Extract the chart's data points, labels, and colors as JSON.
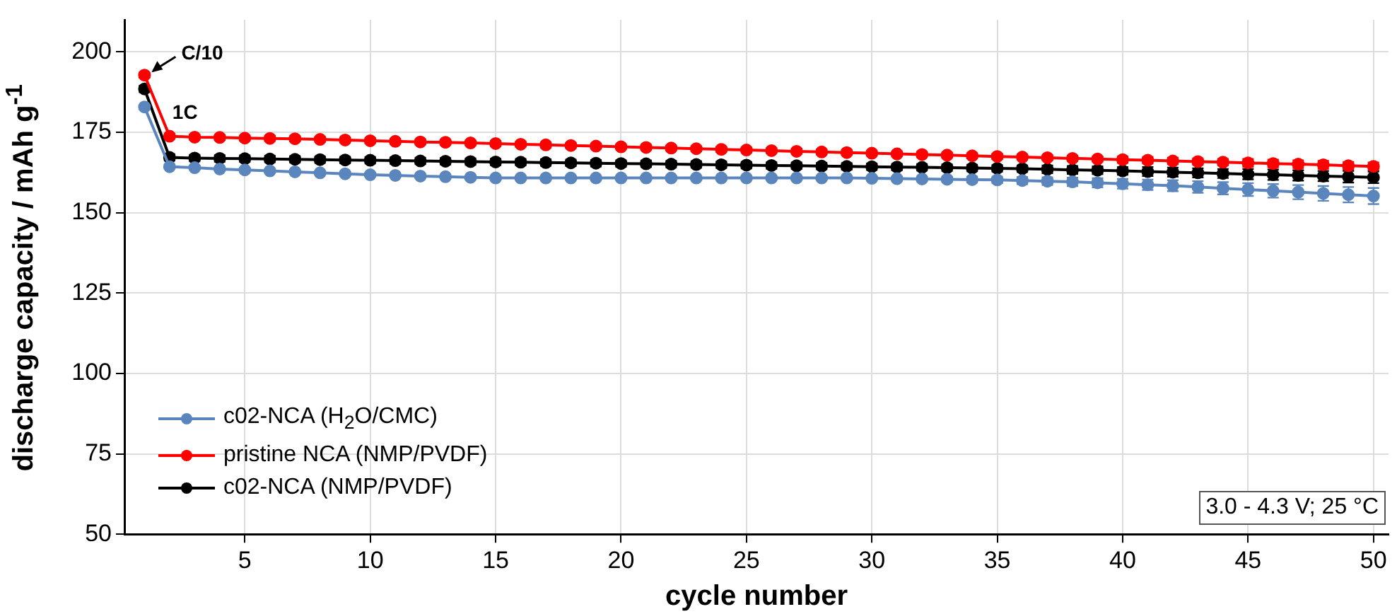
{
  "chart_data": {
    "type": "line",
    "xlabel": "cycle number",
    "ylabel": "discharge capacity / mAh g$^{-1}$",
    "x": [
      1,
      2,
      3,
      4,
      5,
      6,
      7,
      8,
      9,
      10,
      11,
      12,
      13,
      14,
      15,
      16,
      17,
      18,
      19,
      20,
      21,
      22,
      23,
      24,
      25,
      26,
      27,
      28,
      29,
      30,
      31,
      32,
      33,
      34,
      35,
      36,
      37,
      38,
      39,
      40,
      41,
      42,
      43,
      44,
      45,
      46,
      47,
      48,
      49,
      50
    ],
    "series": [
      {
        "name": "c02-NCA (H$_{2}$O/CMC)",
        "color": "#5b86bd",
        "values": [
          182.9,
          164.3,
          164.0,
          163.6,
          163.3,
          163.0,
          162.7,
          162.4,
          162.1,
          161.8,
          161.6,
          161.4,
          161.2,
          161.0,
          160.8,
          160.8,
          160.8,
          160.8,
          160.8,
          160.8,
          160.8,
          160.8,
          160.8,
          160.8,
          160.8,
          160.8,
          160.8,
          160.8,
          160.8,
          160.7,
          160.6,
          160.5,
          160.4,
          160.3,
          160.2,
          160.0,
          159.8,
          159.6,
          159.3,
          159.0,
          158.7,
          158.4,
          158.0,
          157.6,
          157.2,
          156.8,
          156.4,
          156.0,
          155.6,
          155.2
        ],
        "errors": [
          0.5,
          0.5,
          0.5,
          0.5,
          0.5,
          0.5,
          0.5,
          0.5,
          0.5,
          0.5,
          0.5,
          0.5,
          0.5,
          0.5,
          0.5,
          0.5,
          0.5,
          0.5,
          0.5,
          0.5,
          0.5,
          0.5,
          0.5,
          0.5,
          0.5,
          0.5,
          0.5,
          0.5,
          0.5,
          0.5,
          0.6,
          0.7,
          0.8,
          0.9,
          1.0,
          1.1,
          1.2,
          1.3,
          1.4,
          1.5,
          1.6,
          1.7,
          1.8,
          1.9,
          2.0,
          2.1,
          2.2,
          2.3,
          2.4,
          2.5
        ]
      },
      {
        "name": "pristine NCA (NMP/PVDF)",
        "color": "#ff0000",
        "values": [
          192.8,
          173.8,
          173.5,
          173.4,
          173.2,
          173.1,
          173.0,
          172.8,
          172.6,
          172.4,
          172.2,
          172.0,
          171.9,
          171.7,
          171.5,
          171.3,
          171.1,
          170.9,
          170.7,
          170.5,
          170.3,
          170.1,
          169.9,
          169.7,
          169.5,
          169.3,
          169.1,
          168.9,
          168.7,
          168.5,
          168.3,
          168.1,
          167.9,
          167.7,
          167.5,
          167.3,
          167.1,
          166.9,
          166.7,
          166.5,
          166.3,
          166.1,
          165.9,
          165.7,
          165.5,
          165.3,
          165.1,
          164.9,
          164.6,
          164.4
        ],
        "errors": [
          0.8,
          0.8,
          0.8,
          0.8,
          0.8,
          0.8,
          0.8,
          0.8,
          0.8,
          0.8,
          0.8,
          0.8,
          0.8,
          0.8,
          0.8,
          0.8,
          0.8,
          0.8,
          0.8,
          0.8,
          0.8,
          0.8,
          0.8,
          0.8,
          0.8,
          0.8,
          0.8,
          0.8,
          0.8,
          0.8,
          0.8,
          0.8,
          0.8,
          0.8,
          0.8,
          0.8,
          0.8,
          0.8,
          0.8,
          1.0,
          1.0,
          1.0,
          1.0,
          1.0,
          1.2,
          1.2,
          1.2,
          1.2,
          1.2,
          1.2
        ]
      },
      {
        "name": "c02-NCA (NMP/PVDF)",
        "color": "#000000",
        "values": [
          188.5,
          167.2,
          167.0,
          166.9,
          166.8,
          166.7,
          166.6,
          166.5,
          166.4,
          166.3,
          166.2,
          166.1,
          166.0,
          165.9,
          165.8,
          165.7,
          165.6,
          165.5,
          165.4,
          165.3,
          165.2,
          165.1,
          165.0,
          164.9,
          164.8,
          164.7,
          164.6,
          164.5,
          164.4,
          164.3,
          164.2,
          164.1,
          164.0,
          163.9,
          163.8,
          163.7,
          163.5,
          163.3,
          163.2,
          163.0,
          162.8,
          162.6,
          162.4,
          162.2,
          162.0,
          161.8,
          161.6,
          161.4,
          161.2,
          161.0
        ],
        "errors": [
          1.0,
          1.0,
          1.0,
          1.0,
          1.0,
          1.0,
          1.0,
          1.0,
          1.0,
          1.0,
          1.0,
          1.0,
          1.0,
          1.0,
          1.0,
          1.0,
          1.0,
          1.0,
          1.0,
          1.0,
          1.0,
          1.0,
          1.0,
          1.0,
          1.0,
          1.0,
          1.0,
          1.0,
          1.0,
          1.0,
          1.0,
          1.0,
          1.0,
          1.0,
          1.0,
          1.0,
          1.2,
          1.2,
          1.2,
          1.2,
          1.4,
          1.4,
          1.4,
          1.4,
          1.6,
          1.6,
          1.6,
          1.6,
          1.8,
          1.8
        ]
      }
    ],
    "xlim": [
      0.2,
      50.6
    ],
    "xticks": [
      5,
      10,
      15,
      20,
      25,
      30,
      35,
      40,
      45,
      50
    ],
    "ylim": [
      50,
      210
    ],
    "yticks": [
      50,
      75,
      100,
      125,
      150,
      175,
      200
    ],
    "grid": true,
    "legend": "bottom left",
    "marker": "circle",
    "line_style": "solid",
    "annotations": [
      {
        "text": "C/10",
        "x": 1,
        "y": 192.8
      },
      {
        "text": "1C",
        "x": 2,
        "y": 173.8
      },
      "3.0 - 4.3 V; 25 °C"
    ]
  }
}
